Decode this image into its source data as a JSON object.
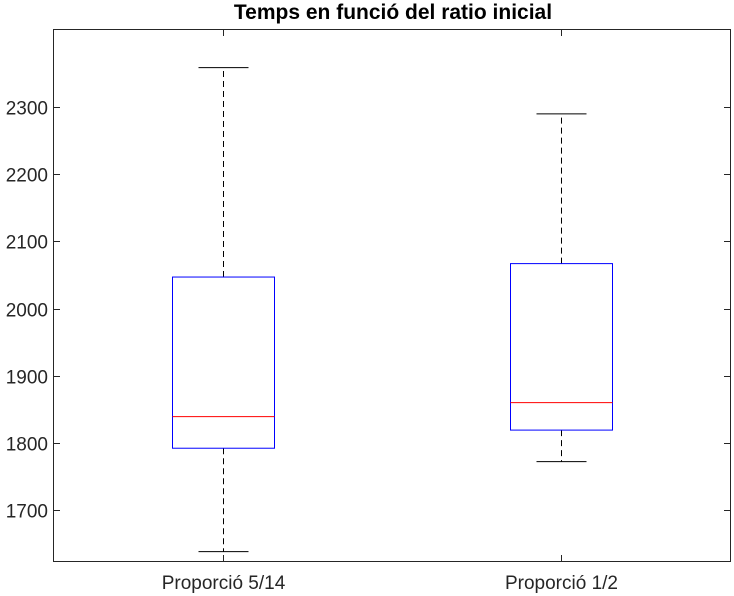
{
  "chart_data": {
    "type": "box",
    "title": "Temps en funció del ratio inicial",
    "xlabel": "",
    "ylabel": "",
    "ylim": [
      1600,
      2400
    ],
    "yticks": [
      1700,
      1800,
      1900,
      2000,
      2100,
      2200,
      2300
    ],
    "grid": false,
    "categories": [
      "Proporció 5/14",
      "Proporció 1/2"
    ],
    "boxes": [
      {
        "category": "Proporció 5/14",
        "whisker_low": 1638,
        "q1": 1792,
        "median": 1839,
        "q3": 2047,
        "whisker_high": 2359
      },
      {
        "category": "Proporció 1/2",
        "whisker_low": 1772,
        "q1": 1819,
        "median": 1860,
        "q3": 2067,
        "whisker_high": 2290
      }
    ],
    "colors": {
      "box": "#0000ff",
      "median": "#ff0000",
      "whisker": "#000000",
      "axis": "#262626"
    }
  }
}
